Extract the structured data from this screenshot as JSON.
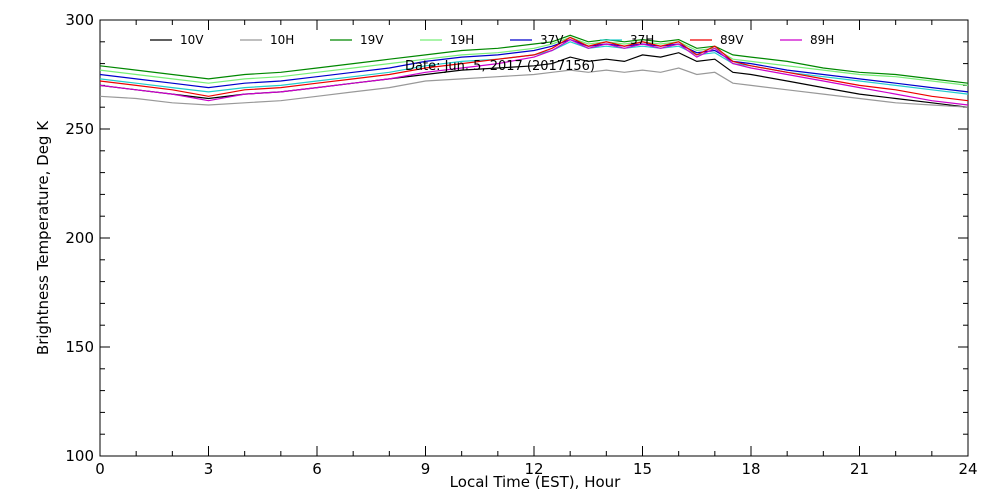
{
  "chart_data": {
    "type": "line",
    "title": "",
    "annotation": "Date: Jun. 5, 2017 (2017156)",
    "xlabel": "Local Time (EST), Hour",
    "ylabel": "Brightness Temperature, Deg K",
    "xlim": [
      0,
      24
    ],
    "ylim": [
      100,
      300
    ],
    "xticks": [
      0,
      3,
      6,
      9,
      12,
      15,
      18,
      21,
      24
    ],
    "yticks": [
      100,
      150,
      200,
      250,
      300
    ],
    "grid": false,
    "legend_position": "top",
    "x": [
      0,
      1,
      2,
      3,
      4,
      5,
      6,
      7,
      8,
      9,
      10,
      11,
      12,
      12.5,
      13,
      13.5,
      14,
      14.5,
      15,
      15.5,
      16,
      16.5,
      17,
      17.5,
      18,
      19,
      20,
      21,
      22,
      23,
      24
    ],
    "series": [
      {
        "name": "10V",
        "color": "#000000",
        "values": [
          270,
          268,
          266,
          264,
          266,
          267,
          269,
          271,
          273,
          275,
          277,
          278,
          279,
          280,
          283,
          281,
          282,
          281,
          284,
          283,
          285,
          281,
          282,
          276,
          275,
          272,
          269,
          266,
          264,
          262,
          260
        ]
      },
      {
        "name": "10H",
        "color": "#999999",
        "values": [
          265,
          264,
          262,
          261,
          262,
          263,
          265,
          267,
          269,
          272,
          273,
          274,
          275,
          276,
          277,
          276,
          277,
          276,
          277,
          276,
          278,
          275,
          276,
          271,
          270,
          268,
          266,
          264,
          262,
          261,
          260
        ]
      },
      {
        "name": "19V",
        "color": "#008800",
        "values": [
          279,
          277,
          275,
          273,
          275,
          276,
          278,
          280,
          282,
          284,
          286,
          287,
          289,
          290,
          293,
          290,
          291,
          290,
          291,
          290,
          291,
          287,
          288,
          284,
          283,
          281,
          278,
          276,
          275,
          273,
          271
        ]
      },
      {
        "name": "19H",
        "color": "#77ee77",
        "values": [
          277,
          275,
          273,
          271,
          273,
          274,
          276,
          278,
          280,
          282,
          284,
          285,
          287,
          289,
          292,
          289,
          290,
          289,
          290,
          289,
          290,
          286,
          287,
          282,
          281,
          279,
          277,
          275,
          274,
          272,
          270
        ]
      },
      {
        "name": "37V",
        "color": "#0000cc",
        "values": [
          275,
          273,
          271,
          269,
          271,
          272,
          274,
          276,
          278,
          281,
          283,
          284,
          286,
          288,
          291,
          288,
          289,
          288,
          289,
          288,
          289,
          285,
          286,
          281,
          280,
          277,
          275,
          273,
          271,
          269,
          267
        ]
      },
      {
        "name": "37H",
        "color": "#22cccc",
        "values": [
          273,
          271,
          269,
          267,
          269,
          270,
          272,
          274,
          276,
          279,
          281,
          282,
          284,
          286,
          290,
          287,
          288,
          287,
          288,
          287,
          288,
          284,
          285,
          280,
          279,
          276,
          274,
          272,
          270,
          268,
          266
        ]
      },
      {
        "name": "89V",
        "color": "#ee0000",
        "values": [
          272,
          270,
          268,
          265,
          268,
          269,
          271,
          273,
          275,
          278,
          280,
          282,
          284,
          287,
          292,
          288,
          290,
          288,
          290,
          288,
          290,
          284,
          288,
          281,
          279,
          276,
          273,
          270,
          268,
          265,
          263
        ]
      },
      {
        "name": "89H",
        "color": "#cc00cc",
        "values": [
          270,
          268,
          266,
          263,
          266,
          267,
          269,
          271,
          273,
          276,
          278,
          280,
          283,
          286,
          291,
          287,
          289,
          287,
          289,
          287,
          289,
          283,
          287,
          280,
          278,
          275,
          272,
          269,
          266,
          263,
          261
        ]
      }
    ]
  }
}
